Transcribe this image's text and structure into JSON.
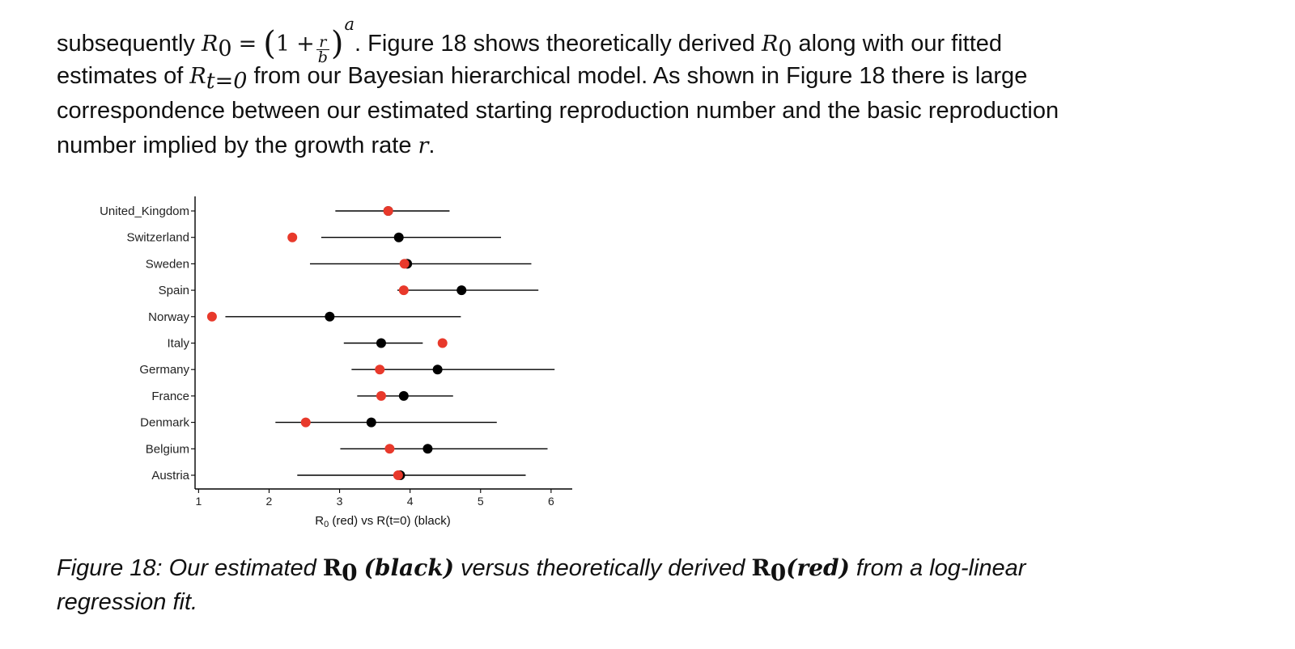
{
  "paragraph": {
    "l1_pre": "subsequently ",
    "R": "R",
    "zero": "0",
    "eq": "=",
    "lparen": "(",
    "one": "1",
    "plus": "+",
    "frac_num": "r",
    "frac_den": "b",
    "rparen": ")",
    "exp_a": "a",
    "l1_post": ". Figure 18 shows theoretically derived ",
    "l1_end": " along with our fitted",
    "l2_pre": "estimates of ",
    "t_sub": "t=0",
    "l2_post": " from our Bayesian hierarchical model. As shown in Figure 18 there is large",
    "l3": "correspondence between our estimated starting reproduction number and the basic reproduction",
    "l4_pre": "number implied by the growth rate ",
    "r_var": "r",
    "l4_end": "."
  },
  "caption": {
    "pre": "Figure 18: Our estimated ",
    "R": "R",
    "zero": "0",
    "black": "(black)",
    "mid": " versus theoretically derived ",
    "red": "(red)",
    "post1": " from a log-linear",
    "line2": "regression fit."
  },
  "colors": {
    "red": "#e8392b",
    "black": "#000000"
  },
  "chart_data": {
    "type": "scatter",
    "subtype": "dot-and-interval",
    "xlabel_pre": "R",
    "xlabel_sub": "0",
    "xlabel_post": " (red) vs R(t=0) (black)",
    "xlim": [
      0.95,
      6.3
    ],
    "xticks": [
      1,
      2,
      3,
      4,
      5,
      6
    ],
    "countries": [
      "United_Kingdom",
      "Switzerland",
      "Sweden",
      "Spain",
      "Norway",
      "Italy",
      "Germany",
      "France",
      "Denmark",
      "Belgium",
      "Austria"
    ],
    "series": [
      {
        "name": "R(t=0) (black)",
        "color": "#000000",
        "values": [
          3.69,
          3.84,
          3.96,
          4.73,
          2.86,
          3.59,
          4.39,
          3.91,
          3.45,
          4.25,
          3.86
        ],
        "lower": [
          2.94,
          2.74,
          2.58,
          3.82,
          1.38,
          3.06,
          3.17,
          3.25,
          2.09,
          3.01,
          2.4
        ],
        "upper": [
          4.56,
          5.29,
          5.72,
          5.82,
          4.72,
          4.18,
          6.05,
          4.61,
          5.23,
          5.95,
          5.64
        ]
      },
      {
        "name": "R0 (red)",
        "color": "#e8392b",
        "values": [
          3.69,
          2.33,
          3.92,
          3.91,
          1.19,
          4.46,
          3.57,
          3.59,
          2.52,
          3.71,
          3.83
        ]
      }
    ]
  }
}
